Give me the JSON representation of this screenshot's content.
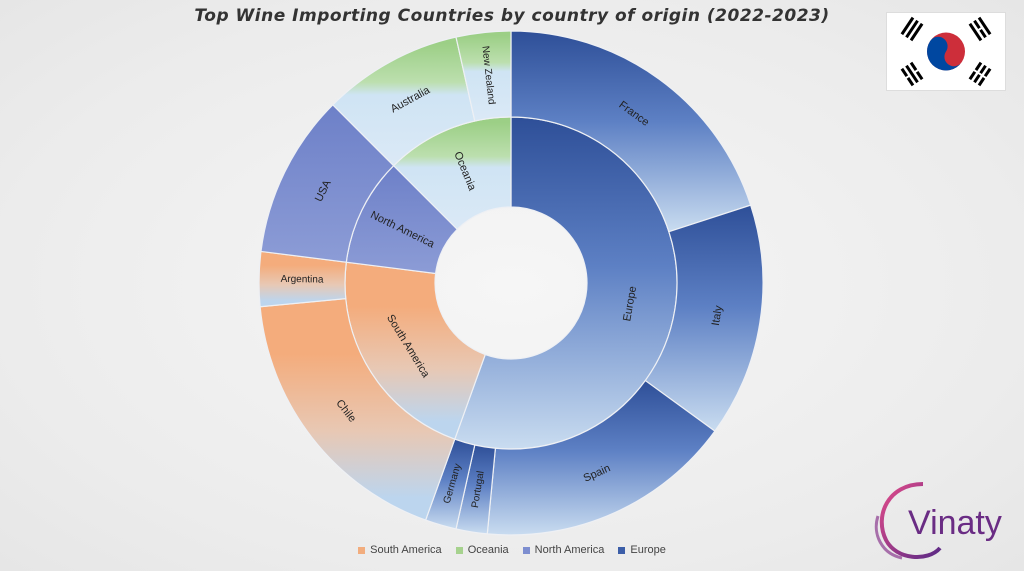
{
  "title": "Top Wine Importing Countries by country of origin (2022-2023)",
  "logo_text": "Vinaty",
  "chart_data": {
    "type": "sunburst",
    "title": "Top Wine Importing Countries by country of origin (2022-2023)",
    "legend_position": "bottom",
    "legend": [
      "South America",
      "Oceania",
      "North America",
      "Europe"
    ],
    "regions": [
      {
        "name": "Europe",
        "color": "#3c5ea8",
        "value": 55.5,
        "children": [
          {
            "name": "France",
            "value": 20
          },
          {
            "name": "Italy",
            "value": 15
          },
          {
            "name": "Spain",
            "value": 16.5
          },
          {
            "name": "Portugal",
            "value": 2
          },
          {
            "name": "Germany",
            "value": 2
          }
        ]
      },
      {
        "name": "South America",
        "color": "#f2ad7e",
        "value": 21.5,
        "children": [
          {
            "name": "Chile",
            "value": 18
          },
          {
            "name": "Argentina",
            "value": 3.5
          }
        ]
      },
      {
        "name": "North America",
        "color": "#7d8ed0",
        "value": 10.5,
        "children": [
          {
            "name": "USA",
            "value": 10.5
          }
        ]
      },
      {
        "name": "Oceania",
        "color": "#a6d28e",
        "value": 12.5,
        "children": [
          {
            "name": "Australia",
            "value": 9
          },
          {
            "name": "New Zealand",
            "value": 3.5
          }
        ]
      }
    ]
  }
}
